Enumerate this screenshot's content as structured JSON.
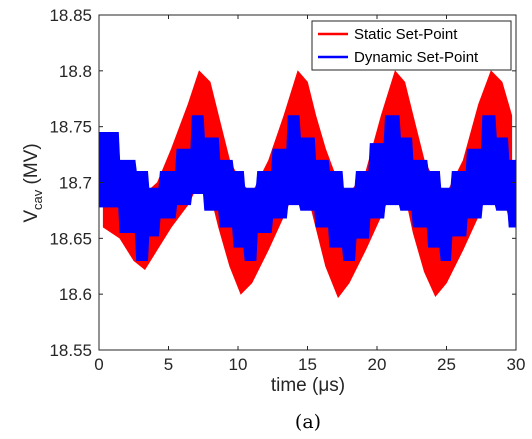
{
  "chart_data": {
    "type": "area",
    "xlabel": "time (μs)",
    "ylabel": "V_cav (MV)",
    "ylabel_main": "V",
    "ylabel_sub": "cav",
    "ylabel_unit": " (MV)",
    "xlim": [
      0,
      30
    ],
    "ylim": [
      18.55,
      18.85
    ],
    "xticks": [
      "0",
      "5",
      "10",
      "15",
      "20",
      "25",
      "30"
    ],
    "yticks": [
      "18.55",
      "18.6",
      "18.65",
      "18.7",
      "18.75",
      "18.8",
      "18.85"
    ],
    "grid": false,
    "legend_position": "top-right",
    "caption": "(a)",
    "series": [
      {
        "name": "Static Set-Point",
        "color": "#ff0000",
        "x": [
          0.3,
          1.5,
          2.5,
          3.3,
          4.2,
          5.2,
          6.4,
          7.2,
          8.0,
          8.6,
          9.4,
          10.2,
          11.0,
          12.2,
          13.3,
          14.3,
          15.0,
          15.6,
          16.3,
          17.2,
          18.0,
          19.2,
          20.3,
          21.3,
          22.0,
          22.6,
          23.4,
          24.2,
          25.0,
          26.2,
          27.3,
          28.2,
          29.0,
          29.7
        ],
        "upper": [
          18.7,
          18.685,
          18.68,
          18.69,
          18.7,
          18.73,
          18.77,
          18.8,
          18.79,
          18.76,
          18.72,
          18.7,
          18.69,
          18.72,
          18.76,
          18.8,
          18.79,
          18.76,
          18.73,
          18.7,
          18.69,
          18.71,
          18.76,
          18.8,
          18.79,
          18.76,
          18.72,
          18.7,
          18.69,
          18.72,
          18.77,
          18.8,
          18.79,
          18.76
        ],
        "lower": [
          18.66,
          18.65,
          18.63,
          18.622,
          18.64,
          18.66,
          18.68,
          18.7,
          18.69,
          18.66,
          18.625,
          18.6,
          18.61,
          18.64,
          18.67,
          18.7,
          18.69,
          18.66,
          18.625,
          18.597,
          18.61,
          18.64,
          18.67,
          18.7,
          18.69,
          18.655,
          18.62,
          18.598,
          18.61,
          18.64,
          18.67,
          18.7,
          18.69,
          18.66
        ]
      },
      {
        "name": "Dynamic Set-Point",
        "color": "#0000ff",
        "x": [
          0,
          1.4,
          1.5,
          2.6,
          2.7,
          3.5,
          3.6,
          4.3,
          4.4,
          5.5,
          5.6,
          6.6,
          6.7,
          7.5,
          7.6,
          8.6,
          8.7,
          9.6,
          9.7,
          10.4,
          10.5,
          11.3,
          11.4,
          12.4,
          12.5,
          13.5,
          13.6,
          14.4,
          14.5,
          15.5,
          15.6,
          16.5,
          16.6,
          17.5,
          17.6,
          18.4,
          18.5,
          19.4,
          19.5,
          20.5,
          20.6,
          21.6,
          21.7,
          22.5,
          22.6,
          23.6,
          23.7,
          24.5,
          24.6,
          25.3,
          25.4,
          26.4,
          26.5,
          27.5,
          27.6,
          28.5,
          28.6,
          29.4,
          29.5,
          30.0
        ],
        "upper": [
          18.745,
          18.745,
          18.72,
          18.72,
          18.71,
          18.71,
          18.695,
          18.695,
          18.71,
          18.71,
          18.73,
          18.73,
          18.76,
          18.76,
          18.74,
          18.74,
          18.72,
          18.72,
          18.71,
          18.71,
          18.695,
          18.695,
          18.71,
          18.71,
          18.73,
          18.73,
          18.76,
          18.76,
          18.74,
          18.74,
          18.72,
          18.72,
          18.71,
          18.71,
          18.695,
          18.695,
          18.71,
          18.71,
          18.735,
          18.735,
          18.76,
          18.76,
          18.74,
          18.74,
          18.72,
          18.72,
          18.71,
          18.71,
          18.695,
          18.695,
          18.71,
          18.71,
          18.73,
          18.73,
          18.76,
          18.76,
          18.74,
          18.74,
          18.72,
          18.72
        ],
        "lower": [
          18.678,
          18.678,
          18.655,
          18.655,
          18.63,
          18.63,
          18.652,
          18.652,
          18.668,
          18.668,
          18.68,
          18.68,
          18.69,
          18.69,
          18.675,
          18.675,
          18.66,
          18.66,
          18.642,
          18.642,
          18.63,
          18.63,
          18.655,
          18.655,
          18.668,
          18.668,
          18.68,
          18.68,
          18.675,
          18.675,
          18.66,
          18.66,
          18.642,
          18.642,
          18.63,
          18.63,
          18.65,
          18.65,
          18.668,
          18.668,
          18.68,
          18.68,
          18.675,
          18.675,
          18.66,
          18.66,
          18.642,
          18.642,
          18.63,
          18.63,
          18.652,
          18.652,
          18.668,
          18.668,
          18.68,
          18.68,
          18.675,
          18.675,
          18.66,
          18.66
        ]
      }
    ]
  }
}
